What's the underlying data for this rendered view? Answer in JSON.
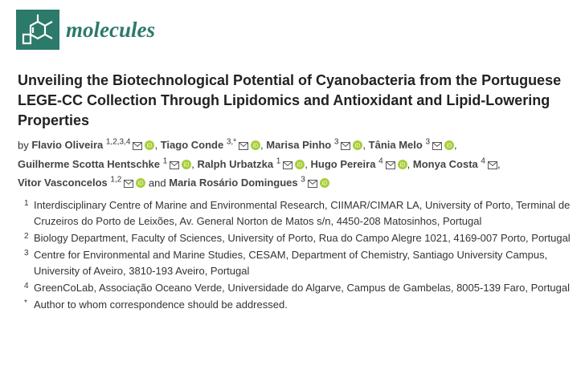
{
  "header": {
    "journal": "molecules"
  },
  "title": "Unveiling the Biotechnological Potential of Cyanobacteria from the Portuguese LEGE-CC Collection Through Lipidomics and Antioxidant and Lipid-Lowering Properties",
  "byline": {
    "by": "by",
    "and": "and",
    "authors": [
      {
        "name": "Flavio Oliveira",
        "affil": "1,2,3,4",
        "orcid": true,
        "after": ","
      },
      {
        "name": "Tiago Conde",
        "affil": "3,*",
        "orcid": true,
        "after": ","
      },
      {
        "name": "Marisa Pinho",
        "affil": "3",
        "orcid": true,
        "after": ","
      },
      {
        "name": "Tânia Melo",
        "affil": "3",
        "orcid": true,
        "after": ","
      },
      {
        "name": "Guilherme Scotta Hentschke",
        "affil": "1",
        "orcid": true,
        "after": ","
      },
      {
        "name": "Ralph Urbatzka",
        "affil": "1",
        "orcid": true,
        "after": ","
      },
      {
        "name": "Hugo Pereira",
        "affil": "4",
        "orcid": true,
        "after": ","
      },
      {
        "name": "Monya Costa",
        "affil": "4",
        "orcid": false,
        "after": ","
      },
      {
        "name": "Vitor Vasconcelos",
        "affil": "1,2",
        "orcid": true
      },
      {
        "name": "Maria Rosário Domingues",
        "affil": "3",
        "orcid": true
      }
    ]
  },
  "affiliations": [
    {
      "num": "1",
      "text": "Interdisciplinary Centre of Marine and Environmental Research, CIIMAR/CIMAR LA, University of Porto, Terminal de Cruzeiros do Porto de Leixões, Av. General Norton de Matos s/n, 4450-208 Matosinhos, Portugal"
    },
    {
      "num": "2",
      "text": "Biology Department, Faculty of Sciences, University of Porto, Rua do Campo Alegre 1021, 4169-007 Porto, Portugal"
    },
    {
      "num": "3",
      "text": "Centre for Environmental and Marine Studies, CESAM, Department of Chemistry, Santiago University Campus, University of Aveiro, 3810-193 Aveiro, Portugal"
    },
    {
      "num": "4",
      "text": "GreenCoLab, Associação Oceano Verde, Universidade do Algarve, Campus de Gambelas, 8005-139 Faro, Portugal"
    },
    {
      "num": "*",
      "text": "Author to whom correspondence should be addressed."
    }
  ]
}
